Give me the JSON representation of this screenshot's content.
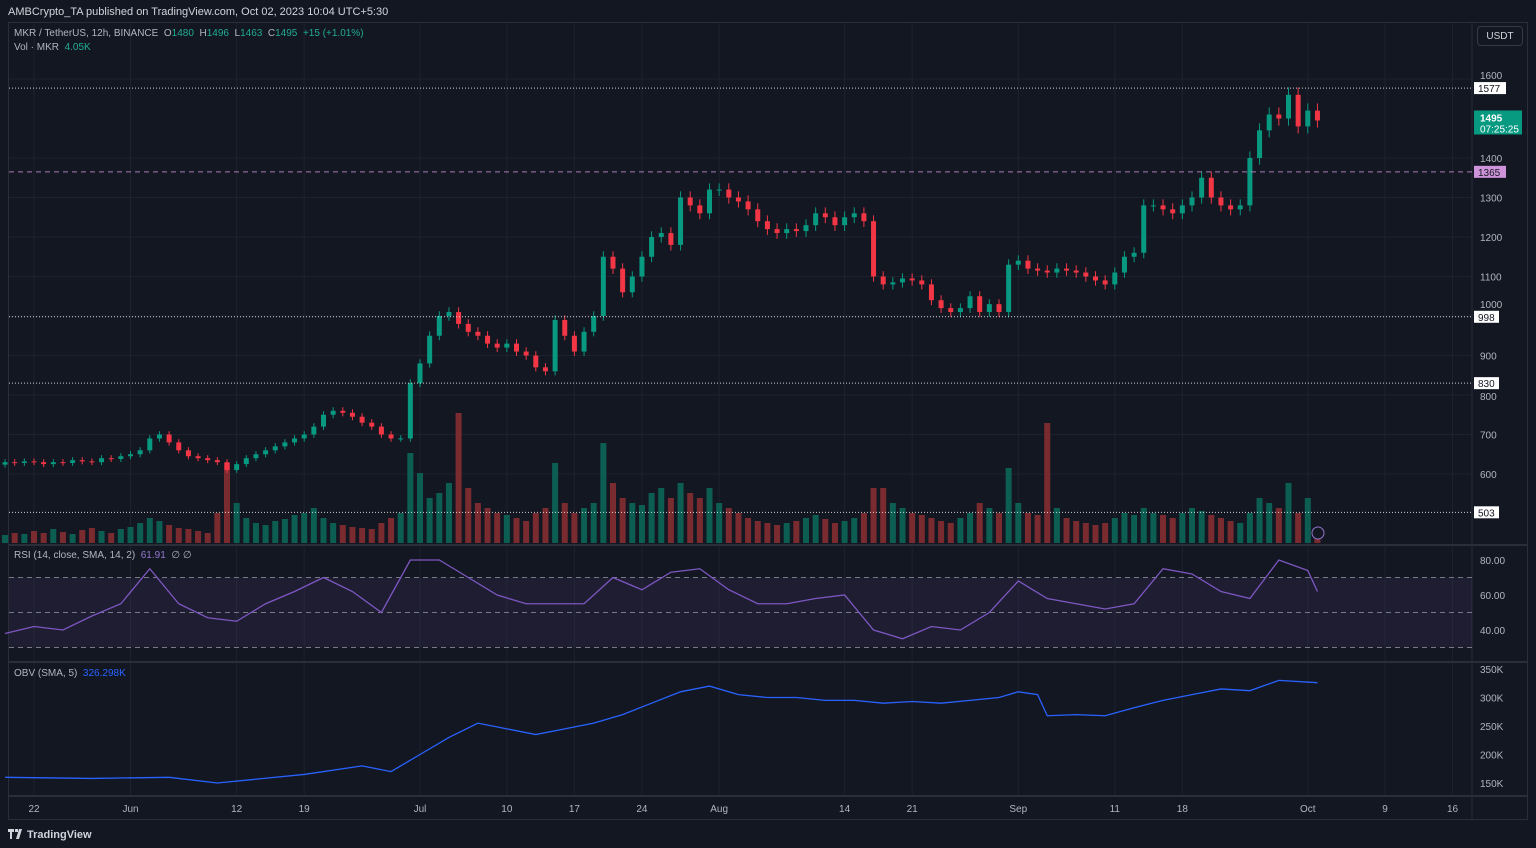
{
  "header": {
    "published": "AMBCrypto_TA published on TradingView.com, Oct 02, 2023 10:04 UTC+5:30"
  },
  "legend": {
    "symbol": "MKR / TetherUS, 12h, BINANCE",
    "o_label": "O",
    "o": "1480",
    "h_label": "H",
    "h": "1496",
    "l_label": "L",
    "l": "1463",
    "c_label": "C",
    "c": "1495",
    "change": "+15 (+1.01%)",
    "vol_label": "Vol · MKR",
    "vol": "4.05K",
    "rsi_label": "RSI (14, close, SMA, 14, 2)",
    "rsi_value": "61.91",
    "rsi_extra": "∅ ∅",
    "obv_label": "OBV (SMA, 5)",
    "obv_value": "326.298K"
  },
  "currency_button": "USDT",
  "footer": {
    "brand": "TradingView"
  },
  "colors": {
    "up": "#089981",
    "down": "#f23645",
    "rsi": "#7e57c2",
    "obv": "#2962ff",
    "pink_level": "#ce93d8"
  },
  "chart_data": [
    {
      "type": "candlestick",
      "title": "MKR / TetherUS, 12h, BINANCE",
      "ylim": [
        560,
        1620
      ],
      "y_ticks": [
        600,
        700,
        800,
        900,
        1000,
        1100,
        1200,
        1300,
        1400,
        1600
      ],
      "x_ticks": [
        {
          "label": "22",
          "date": "2023-05-22"
        },
        {
          "label": "Jun",
          "date": "2023-06-01"
        },
        {
          "label": "12",
          "date": "2023-06-12"
        },
        {
          "label": "19",
          "date": "2023-06-19"
        },
        {
          "label": "Jul",
          "date": "2023-07-01"
        },
        {
          "label": "10",
          "date": "2023-07-10"
        },
        {
          "label": "17",
          "date": "2023-07-17"
        },
        {
          "label": "24",
          "date": "2023-07-24"
        },
        {
          "label": "Aug",
          "date": "2023-08-01"
        },
        {
          "label": "14",
          "date": "2023-08-14"
        },
        {
          "label": "21",
          "date": "2023-08-21"
        },
        {
          "label": "Sep",
          "date": "2023-09-01"
        },
        {
          "label": "11",
          "date": "2023-09-11"
        },
        {
          "label": "18",
          "date": "2023-09-18"
        },
        {
          "label": "Oct",
          "date": "2023-10-01"
        },
        {
          "label": "9",
          "date": "2023-10-09"
        },
        {
          "label": "16",
          "date": "2023-10-16"
        }
      ],
      "levels": [
        {
          "value": 1577,
          "label": "1577",
          "style": "dotted",
          "color": "#ffffff"
        },
        {
          "value": 1365,
          "label": "1365",
          "style": "dashed",
          "color": "#ce93d8"
        },
        {
          "value": 998,
          "label": "998",
          "style": "dotted",
          "color": "#ffffff"
        },
        {
          "value": 830,
          "label": "830",
          "style": "dotted",
          "color": "#ffffff"
        },
        {
          "value": 503,
          "label": "503",
          "style": "dotted",
          "color": "#ffffff"
        }
      ],
      "last_price": {
        "value": 1495,
        "label": "1495",
        "countdown": "07:25:25"
      },
      "months": [
        {
          "month": "2023-05",
          "first_day": 19,
          "close": [
            630,
            628,
            632,
            630,
            625,
            630,
            628,
            635,
            632,
            630,
            640,
            638,
            645
          ],
          "volume": [
            8,
            10,
            9,
            12,
            10,
            14,
            11,
            9,
            13,
            15,
            12,
            10,
            14
          ]
        },
        {
          "month": "2023-06",
          "first_day": 1,
          "close": [
            650,
            660,
            690,
            700,
            680,
            660,
            645,
            640,
            635,
            630,
            610,
            625,
            640,
            650,
            660,
            670,
            680,
            690,
            700,
            720,
            750,
            760,
            755,
            745,
            730,
            720,
            700,
            690,
            690,
            830
          ],
          "volume": [
            16,
            20,
            25,
            22,
            18,
            15,
            14,
            12,
            10,
            30,
            80,
            40,
            25,
            20,
            18,
            22,
            24,
            28,
            30,
            35,
            25,
            20,
            18,
            16,
            15,
            14,
            20,
            25,
            30,
            90
          ]
        },
        {
          "month": "2023-07",
          "first_day": 1,
          "close": [
            880,
            950,
            1000,
            1010,
            980,
            960,
            950,
            930,
            920,
            930,
            910,
            900,
            870,
            860,
            990,
            950,
            910,
            960,
            1000,
            1150,
            1120,
            1060,
            1100,
            1150,
            1200,
            1210,
            1180,
            1300,
            1280,
            1260,
            1320
          ],
          "volume": [
            70,
            45,
            50,
            60,
            130,
            55,
            40,
            35,
            30,
            28,
            25,
            22,
            30,
            35,
            80,
            40,
            30,
            35,
            40,
            100,
            60,
            45,
            40,
            38,
            50,
            55,
            45,
            60,
            50,
            45,
            55
          ]
        },
        {
          "month": "2023-08",
          "first_day": 1,
          "close": [
            1320,
            1300,
            1290,
            1270,
            1240,
            1220,
            1210,
            1220,
            1215,
            1230,
            1260,
            1250,
            1230,
            1250,
            1260,
            1240,
            1100,
            1080,
            1085,
            1095,
            1090,
            1080,
            1040,
            1020,
            1010,
            1020,
            1050,
            1010,
            1030,
            1010,
            1130
          ],
          "volume": [
            40,
            35,
            30,
            25,
            22,
            20,
            18,
            20,
            22,
            25,
            28,
            24,
            20,
            22,
            25,
            30,
            55,
            55,
            40,
            35,
            30,
            28,
            25,
            22,
            20,
            25,
            30,
            40,
            35,
            30,
            75
          ]
        },
        {
          "month": "2023-09",
          "first_day": 1,
          "close": [
            1140,
            1120,
            1115,
            1110,
            1120,
            1115,
            1110,
            1100,
            1090,
            1080,
            1110,
            1150,
            1160,
            1280,
            1280,
            1270,
            1260,
            1280,
            1300,
            1350,
            1300,
            1280,
            1270,
            1280,
            1400,
            1470,
            1510,
            1500,
            1560,
            1480
          ],
          "volume": [
            40,
            30,
            28,
            120,
            35,
            25,
            22,
            20,
            18,
            20,
            25,
            30,
            28,
            35,
            30,
            28,
            25,
            30,
            35,
            32,
            28,
            25,
            22,
            20,
            30,
            45,
            40,
            35,
            60,
            30
          ]
        },
        {
          "month": "2023-10",
          "first_day": 1,
          "close": [
            1520,
            1495
          ],
          "volume": [
            45,
            4.05
          ]
        }
      ]
    },
    {
      "type": "line",
      "title": "RSI (14, close, SMA, 14, 2)",
      "ylim": [
        25,
        88
      ],
      "y_ticks": [
        40,
        60,
        80
      ],
      "bands": [
        30,
        50,
        70
      ],
      "points": [
        [
          "2023-05-19",
          38
        ],
        [
          "2023-05-22",
          42
        ],
        [
          "2023-05-25",
          40
        ],
        [
          "2023-05-28",
          48
        ],
        [
          "2023-05-31",
          55
        ],
        [
          "2023-06-03",
          75
        ],
        [
          "2023-06-06",
          55
        ],
        [
          "2023-06-09",
          47
        ],
        [
          "2023-06-12",
          45
        ],
        [
          "2023-06-15",
          55
        ],
        [
          "2023-06-18",
          62
        ],
        [
          "2023-06-21",
          70
        ],
        [
          "2023-06-24",
          62
        ],
        [
          "2023-06-27",
          50
        ],
        [
          "2023-06-30",
          80
        ],
        [
          "2023-07-03",
          80
        ],
        [
          "2023-07-06",
          70
        ],
        [
          "2023-07-09",
          60
        ],
        [
          "2023-07-12",
          55
        ],
        [
          "2023-07-15",
          55
        ],
        [
          "2023-07-18",
          55
        ],
        [
          "2023-07-21",
          70
        ],
        [
          "2023-07-24",
          63
        ],
        [
          "2023-07-27",
          73
        ],
        [
          "2023-07-30",
          75
        ],
        [
          "2023-08-02",
          63
        ],
        [
          "2023-08-05",
          55
        ],
        [
          "2023-08-08",
          55
        ],
        [
          "2023-08-11",
          58
        ],
        [
          "2023-08-14",
          60
        ],
        [
          "2023-08-17",
          40
        ],
        [
          "2023-08-20",
          35
        ],
        [
          "2023-08-23",
          42
        ],
        [
          "2023-08-26",
          40
        ],
        [
          "2023-08-29",
          50
        ],
        [
          "2023-09-01",
          68
        ],
        [
          "2023-09-04",
          58
        ],
        [
          "2023-09-07",
          55
        ],
        [
          "2023-09-10",
          52
        ],
        [
          "2023-09-13",
          55
        ],
        [
          "2023-09-16",
          75
        ],
        [
          "2023-09-19",
          72
        ],
        [
          "2023-09-22",
          62
        ],
        [
          "2023-09-25",
          58
        ],
        [
          "2023-09-28",
          80
        ],
        [
          "2023-10-01",
          74
        ],
        [
          "2023-10-02",
          62
        ]
      ]
    },
    {
      "type": "line",
      "title": "OBV (SMA, 5)",
      "ylim": [
        130000,
        360000
      ],
      "y_ticks": [
        {
          "v": 150000,
          "label": "150K"
        },
        {
          "v": 200000,
          "label": "200K"
        },
        {
          "v": 250000,
          "label": "250K"
        },
        {
          "v": 300000,
          "label": "300K"
        },
        {
          "v": 350000,
          "label": "350K"
        }
      ],
      "points": [
        [
          "2023-05-19",
          160000
        ],
        [
          "2023-05-28",
          158000
        ],
        [
          "2023-06-05",
          160000
        ],
        [
          "2023-06-10",
          150000
        ],
        [
          "2023-06-19",
          165000
        ],
        [
          "2023-06-25",
          180000
        ],
        [
          "2023-06-28",
          170000
        ],
        [
          "2023-07-01",
          200000
        ],
        [
          "2023-07-04",
          230000
        ],
        [
          "2023-07-07",
          255000
        ],
        [
          "2023-07-10",
          245000
        ],
        [
          "2023-07-13",
          235000
        ],
        [
          "2023-07-16",
          245000
        ],
        [
          "2023-07-19",
          255000
        ],
        [
          "2023-07-22",
          270000
        ],
        [
          "2023-07-25",
          290000
        ],
        [
          "2023-07-28",
          310000
        ],
        [
          "2023-07-31",
          320000
        ],
        [
          "2023-08-03",
          305000
        ],
        [
          "2023-08-06",
          300000
        ],
        [
          "2023-08-09",
          300000
        ],
        [
          "2023-08-12",
          295000
        ],
        [
          "2023-08-15",
          295000
        ],
        [
          "2023-08-18",
          290000
        ],
        [
          "2023-08-21",
          293000
        ],
        [
          "2023-08-24",
          290000
        ],
        [
          "2023-08-27",
          295000
        ],
        [
          "2023-08-30",
          300000
        ],
        [
          "2023-09-01",
          310000
        ],
        [
          "2023-09-03",
          305000
        ],
        [
          "2023-09-04",
          268000
        ],
        [
          "2023-09-07",
          270000
        ],
        [
          "2023-09-10",
          268000
        ],
        [
          "2023-09-13",
          282000
        ],
        [
          "2023-09-16",
          295000
        ],
        [
          "2023-09-19",
          305000
        ],
        [
          "2023-09-22",
          315000
        ],
        [
          "2023-09-25",
          312000
        ],
        [
          "2023-09-28",
          330000
        ],
        [
          "2023-10-02",
          326000
        ]
      ]
    }
  ]
}
